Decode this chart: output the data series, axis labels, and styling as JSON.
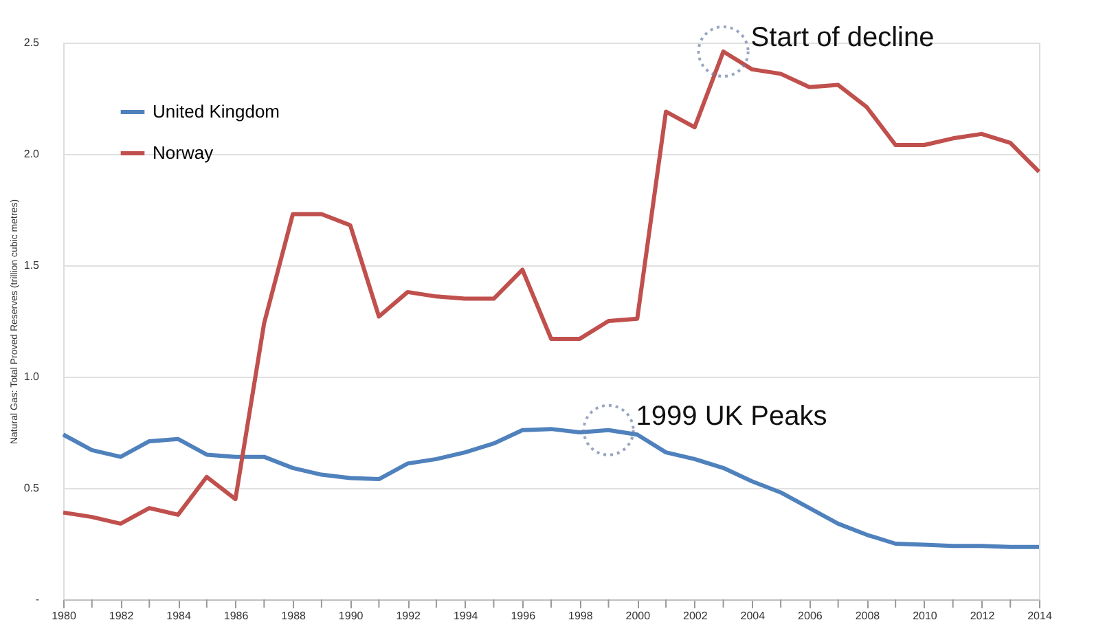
{
  "chart_data": {
    "type": "line",
    "ylabel": "Natural Gas: Total Proved Reserves (trillion cubic metres)",
    "x": [
      1980,
      1981,
      1982,
      1983,
      1984,
      1985,
      1986,
      1987,
      1988,
      1989,
      1990,
      1991,
      1992,
      1993,
      1994,
      1995,
      1996,
      1997,
      1998,
      1999,
      2000,
      2001,
      2002,
      2003,
      2004,
      2005,
      2006,
      2007,
      2008,
      2009,
      2010,
      2011,
      2012,
      2013,
      2014
    ],
    "series": [
      {
        "name": "United Kingdom",
        "color": "#4f81bd",
        "values": [
          0.74,
          0.67,
          0.64,
          0.71,
          0.72,
          0.65,
          0.64,
          0.64,
          0.59,
          0.56,
          0.545,
          0.54,
          0.61,
          0.63,
          0.66,
          0.7,
          0.76,
          0.765,
          0.75,
          0.76,
          0.74,
          0.66,
          0.63,
          0.59,
          0.53,
          0.48,
          0.41,
          0.34,
          0.29,
          0.25,
          0.245,
          0.24,
          0.24,
          0.235,
          0.235
        ]
      },
      {
        "name": "Norway",
        "color": "#c0504d",
        "values": [
          0.39,
          0.37,
          0.34,
          0.41,
          0.38,
          0.55,
          0.45,
          1.24,
          1.73,
          1.73,
          1.68,
          1.27,
          1.38,
          1.36,
          1.35,
          1.35,
          1.48,
          1.17,
          1.17,
          1.25,
          1.26,
          2.19,
          2.12,
          2.46,
          2.38,
          2.36,
          2.3,
          2.31,
          2.21,
          2.04,
          2.04,
          2.07,
          2.09,
          2.05,
          1.92
        ]
      }
    ],
    "annotations": [
      {
        "text": "Start of decline",
        "x": 2003,
        "y": 2.46
      },
      {
        "text": "1999 UK Peaks",
        "x": 1999,
        "y": 0.76
      }
    ],
    "xlim": [
      1980,
      2014
    ],
    "xticks": [
      1980,
      {
        "value": 1981,
        "label": null
      },
      1982,
      {
        "value": 1983,
        "label": null
      },
      1984,
      {
        "value": 1985,
        "label": null
      },
      1986,
      {
        "value": 1987,
        "label": null
      },
      1988,
      {
        "value": 1989,
        "label": null
      },
      1990,
      {
        "value": 1991,
        "label": null
      },
      1992,
      {
        "value": 1993,
        "label": null
      },
      1994,
      {
        "value": 1995,
        "label": null
      },
      1996,
      {
        "value": 1997,
        "label": null
      },
      1998,
      {
        "value": 1999,
        "label": null
      },
      2000,
      {
        "value": 2001,
        "label": null
      },
      2002,
      {
        "value": 2003,
        "label": null
      },
      2004,
      {
        "value": 2005,
        "label": null
      },
      2006,
      {
        "value": 2007,
        "label": null
      },
      2008,
      {
        "value": 2009,
        "label": null
      },
      2010,
      {
        "value": 2011,
        "label": null
      },
      2012,
      {
        "value": 2013,
        "label": null
      },
      2014
    ],
    "ylim": [
      0,
      2.5
    ],
    "yticks": [
      {
        "value": 0,
        "label": "-"
      },
      0.5,
      {
        "value": 1,
        "label": "1.0"
      },
      1.5,
      {
        "value": 2,
        "label": "2.0"
      },
      2.5
    ],
    "grid": "y",
    "legend": "top left",
    "marker": "none",
    "line_style": "solid"
  }
}
